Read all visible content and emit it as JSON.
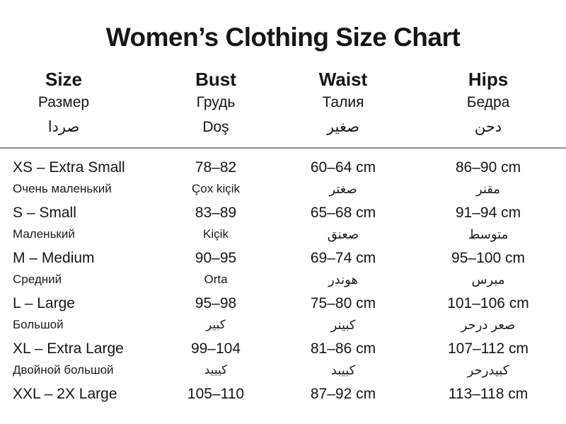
{
  "title": "Women’s Clothing Size Chart",
  "columns": [
    {
      "label": "Size",
      "translation_ru": "Размер",
      "translation_other": "صردا"
    },
    {
      "label": "Bust",
      "translation_ru": "Грудь",
      "translation_other": "Doş"
    },
    {
      "label": "Waist",
      "translation_ru": "Талия",
      "translation_other": "صغير"
    },
    {
      "label": "Hips",
      "translation_ru": "Бедра",
      "translation_other": "دحن"
    }
  ],
  "rows": [
    {
      "size": "XS – Extra Small",
      "size_sub": "Очень маленький",
      "bust": "78–82",
      "bust_sub": "Çox kiçik",
      "waist": "60–64 cm",
      "waist_sub": "صغتر",
      "hips": "86–90 cm",
      "hips_sub": "مقنر"
    },
    {
      "size": "S – Small",
      "size_sub": "Маленький",
      "bust": "83–89",
      "bust_sub": "Kiçik",
      "waist": "65–68 cm",
      "waist_sub": "صعنق",
      "hips": "91–94 cm",
      "hips_sub": "متوسط"
    },
    {
      "size": "M – Medium",
      "size_sub": "Средний",
      "bust": "90–95",
      "bust_sub": "Orta",
      "waist": "69–74 cm",
      "waist_sub": "هوندر",
      "hips": "95–100 cm",
      "hips_sub": "مبرس"
    },
    {
      "size": "L – Large",
      "size_sub": "Большой",
      "bust": "95–98",
      "bust_sub": "كبير",
      "waist": "75–80 cm",
      "waist_sub": "كبينر",
      "hips": "101–106 cm",
      "hips_sub": "صعر درحر"
    },
    {
      "size": "XL – Extra Large",
      "size_sub": "Двойной большой",
      "bust": "99–104",
      "bust_sub": "كيييد",
      "waist": "81–86 cm",
      "waist_sub": "كبيبد",
      "hips": "107–112 cm",
      "hips_sub": "كبيدرحر"
    },
    {
      "size": "XXL – 2X Large",
      "bust": "105–110",
      "waist": "87–92 cm",
      "hips": "113–118 cm"
    }
  ],
  "colors": {
    "background": "#ffffff",
    "text": "#151515",
    "divider": "#8f8f8f"
  }
}
